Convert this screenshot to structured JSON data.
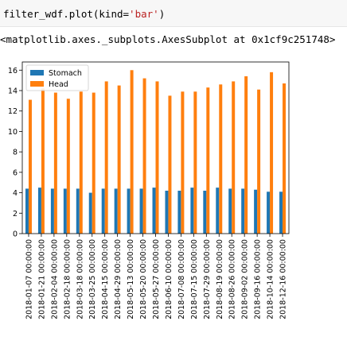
{
  "cell": {
    "code_prefix": "filter_wdf.plot(kind=",
    "code_string": "'bar'",
    "code_suffix": ")",
    "output_text": "<matplotlib.axes._subplots.AxesSubplot at 0x1cf9c251748>"
  },
  "chart_data": {
    "type": "bar",
    "categories": [
      "2018-01-07 00:00:00",
      "2018-01-21 00:00:00",
      "2018-02-04 00:00:00",
      "2018-02-18 00:00:00",
      "2018-03-18 00:00:00",
      "2018-03-25 00:00:00",
      "2018-04-15 00:00:00",
      "2018-04-29 00:00:00",
      "2018-05-13 00:00:00",
      "2018-05-20 00:00:00",
      "2018-05-27 00:00:00",
      "2018-06-10 00:00:00",
      "2018-07-08 00:00:00",
      "2018-07-15 00:00:00",
      "2018-07-29 00:00:00",
      "2018-08-19 00:00:00",
      "2018-08-26 00:00:00",
      "2018-09-02 00:00:00",
      "2018-09-16 00:00:00",
      "2018-10-14 00:00:00",
      "2018-12-16 00:00:00"
    ],
    "series": [
      {
        "name": "Stomach",
        "color": "#1f77b4",
        "values": [
          4.4,
          4.5,
          4.4,
          4.4,
          4.4,
          4.0,
          4.4,
          4.4,
          4.4,
          4.4,
          4.5,
          4.2,
          4.2,
          4.5,
          4.2,
          4.5,
          4.4,
          4.4,
          4.3,
          4.1,
          4.1
        ]
      },
      {
        "name": "Head",
        "color": "#ff7f0e",
        "values": [
          13.1,
          14.2,
          13.8,
          13.2,
          13.9,
          13.8,
          14.9,
          14.5,
          16.0,
          15.2,
          14.9,
          13.5,
          13.9,
          13.9,
          14.3,
          14.6,
          14.9,
          15.4,
          14.1,
          15.8,
          14.7
        ]
      }
    ],
    "yticks": [
      0,
      2,
      4,
      6,
      8,
      10,
      12,
      14,
      16
    ],
    "ylim": [
      0,
      16.8
    ],
    "legend": "upper-left",
    "grid": false
  }
}
